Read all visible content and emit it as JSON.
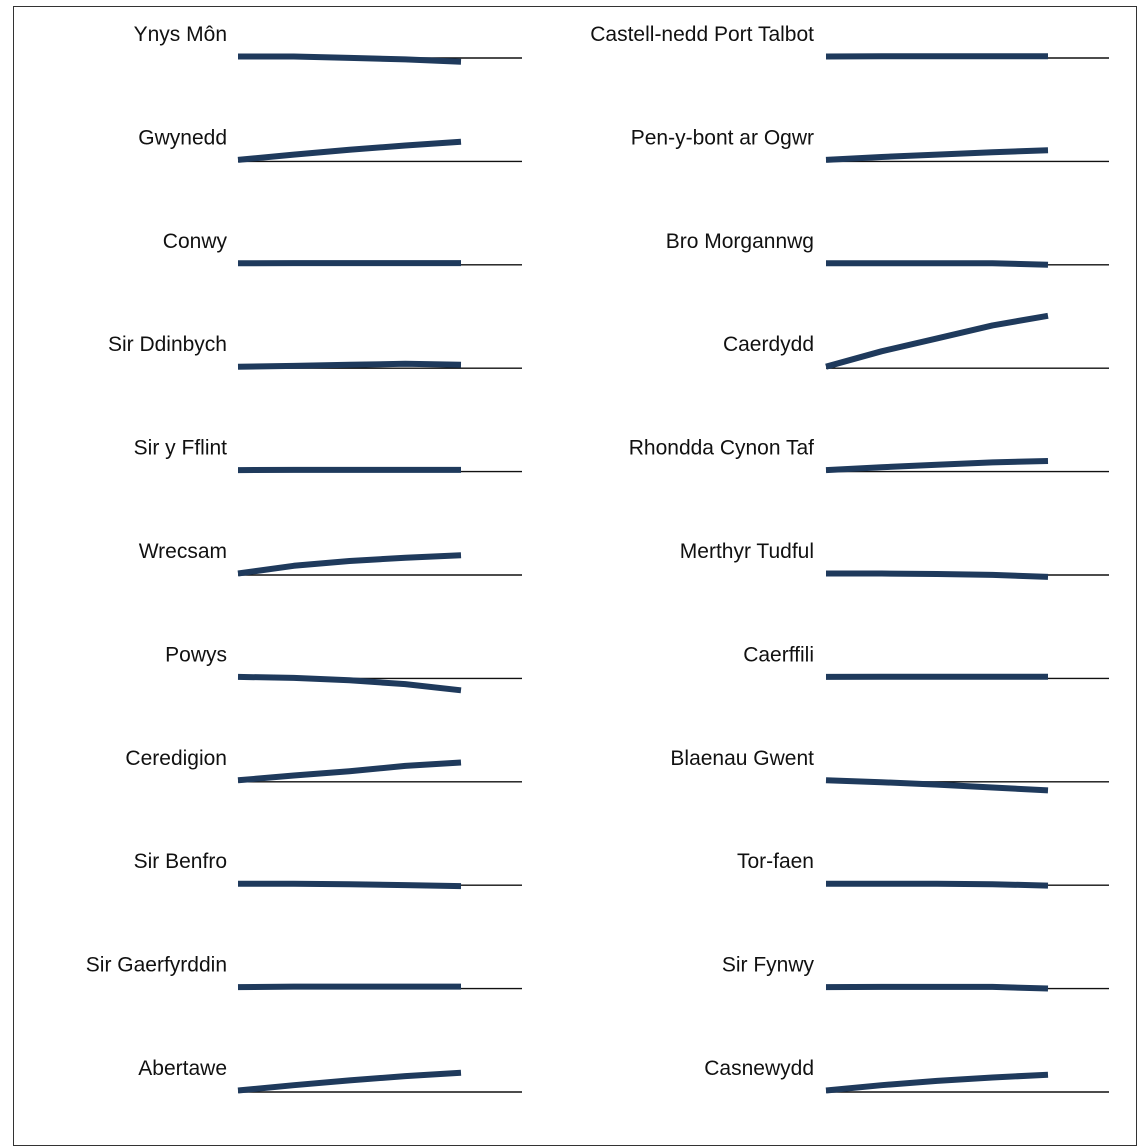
{
  "colors": {
    "line": "#1f3a5c",
    "baseline": "#111111",
    "text": "#111111",
    "frame": "#333333"
  },
  "chart_data": {
    "type": "line",
    "layout": "small-multiples",
    "title": "",
    "xlabel": "",
    "ylabel": "",
    "x": [
      0,
      1,
      2,
      3,
      4
    ],
    "ylim": [
      -1,
      5
    ],
    "grid": false,
    "series": [
      {
        "name": "Ynys Môn",
        "values": [
          0,
          0,
          -0.15,
          -0.3,
          -0.55
        ]
      },
      {
        "name": "Gwynedd",
        "values": [
          0,
          0.55,
          1.05,
          1.5,
          1.9
        ]
      },
      {
        "name": "Conwy",
        "values": [
          0,
          0.02,
          0.02,
          0.02,
          0.02
        ]
      },
      {
        "name": "Sir Ddinbych",
        "values": [
          0,
          0.08,
          0.2,
          0.3,
          0.2
        ]
      },
      {
        "name": "Sir y Fflint",
        "values": [
          0,
          0.02,
          0.02,
          0.02,
          0.02
        ]
      },
      {
        "name": "Wrecsam",
        "values": [
          0,
          0.8,
          1.3,
          1.65,
          1.9
        ]
      },
      {
        "name": "Powys",
        "values": [
          0,
          -0.1,
          -0.35,
          -0.75,
          -1.4
        ]
      },
      {
        "name": "Ceredigion",
        "values": [
          0,
          0.5,
          0.95,
          1.5,
          1.85
        ]
      },
      {
        "name": "Sir Benfro",
        "values": [
          0,
          0,
          -0.05,
          -0.15,
          -0.25
        ]
      },
      {
        "name": "Sir Gaerfyrddin",
        "values": [
          0,
          0.05,
          0.05,
          0.05,
          0.05
        ]
      },
      {
        "name": "Abertawe",
        "values": [
          0,
          0.55,
          1.05,
          1.5,
          1.85
        ]
      },
      {
        "name": "Castell-nedd Port Talbot",
        "values": [
          0,
          0.02,
          0.02,
          0.02,
          0.02
        ]
      },
      {
        "name": "Pen-y-bont ar Ogwr",
        "values": [
          0,
          0.3,
          0.55,
          0.8,
          1.0
        ]
      },
      {
        "name": "Bro Morgannwg",
        "values": [
          0,
          0,
          0,
          0,
          -0.15
        ]
      },
      {
        "name": "Caerdydd",
        "values": [
          0,
          1.6,
          2.95,
          4.3,
          5.3
        ]
      },
      {
        "name": "Rhondda Cynon Taf",
        "values": [
          0,
          0.3,
          0.55,
          0.8,
          0.95
        ]
      },
      {
        "name": "Merthyr Tudful",
        "values": [
          0,
          0,
          -0.05,
          -0.15,
          -0.35
        ]
      },
      {
        "name": "Caerffili",
        "values": [
          0,
          0.02,
          0.02,
          0.02,
          0.02
        ]
      },
      {
        "name": "Blaenau Gwent",
        "values": [
          0,
          -0.2,
          -0.45,
          -0.75,
          -1.05
        ]
      },
      {
        "name": "Tor-faen",
        "values": [
          0,
          0,
          0,
          -0.05,
          -0.2
        ]
      },
      {
        "name": "Sir Fynwy",
        "values": [
          0,
          0.02,
          0.02,
          0.02,
          -0.15
        ]
      },
      {
        "name": "Casnewydd",
        "values": [
          0,
          0.55,
          1.0,
          1.35,
          1.65
        ]
      }
    ]
  }
}
